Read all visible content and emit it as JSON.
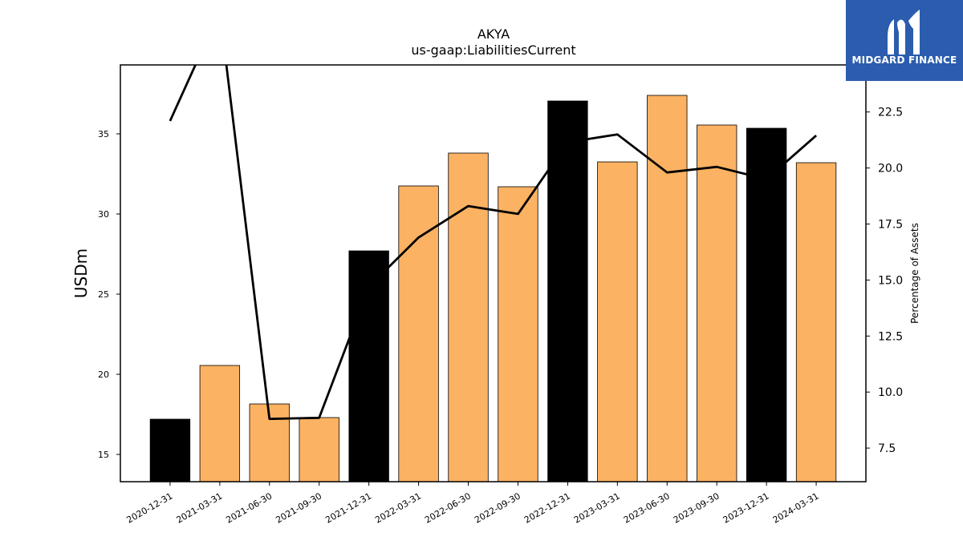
{
  "logo": {
    "name": "MIDGARD FINANCE"
  },
  "chart_data": {
    "type": "bar",
    "title": "AKYA",
    "subtitle": "us-gaap:LiabilitiesCurrent",
    "ylabel": "USDm",
    "y2label": "Percentage of Assets",
    "categories": [
      "2020-12-31",
      "2021-03-31",
      "2021-06-30",
      "2021-09-30",
      "2021-12-31",
      "2022-03-31",
      "2022-06-30",
      "2022-09-30",
      "2022-12-31",
      "2023-03-31",
      "2023-06-30",
      "2023-09-30",
      "2023-12-31",
      "2024-03-31"
    ],
    "series": [
      {
        "type": "bar",
        "axis": "left",
        "values": [
          17.2,
          20.55,
          18.15,
          17.3,
          27.7,
          31.75,
          33.8,
          31.7,
          37.05,
          33.25,
          37.4,
          35.55,
          35.35,
          33.2
        ],
        "colors": [
          "#000000",
          "#fbb262",
          "#fbb262",
          "#fbb262",
          "#000000",
          "#fbb262",
          "#fbb262",
          "#fbb262",
          "#000000",
          "#fbb262",
          "#fbb262",
          "#fbb262",
          "#000000",
          "#fbb262"
        ]
      },
      {
        "type": "line",
        "axis": "right",
        "color": "#000000",
        "values": [
          22.1,
          27.0,
          8.8,
          8.85,
          14.7,
          16.9,
          18.3,
          17.95,
          21.15,
          21.5,
          19.8,
          20.05,
          19.5,
          21.45
        ]
      }
    ],
    "ylim": [
      13.3,
      39.3
    ],
    "yticks": [
      15,
      20,
      25,
      30,
      35
    ],
    "y2lim": [
      6.0,
      24.6
    ],
    "y2ticks": [
      "7.5",
      "10.0",
      "12.5",
      "15.0",
      "17.5",
      "20.0",
      "22.5"
    ],
    "grid": false
  }
}
